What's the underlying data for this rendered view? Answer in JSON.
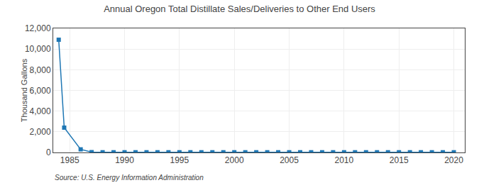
{
  "chart_data": {
    "type": "line",
    "title": "Annual Oregon Total Distillate Sales/Deliveries to Other End Users",
    "ylabel": "Thousand Gallons",
    "annotations": [
      "Source: U.S. Energy Information Administration"
    ],
    "x": [
      1984,
      1984.5,
      1986,
      1987,
      1988,
      1989,
      1990,
      1991,
      1992,
      1993,
      1994,
      1995,
      1996,
      1997,
      1998,
      1999,
      2000,
      2001,
      2002,
      2003,
      2004,
      2005,
      2006,
      2007,
      2008,
      2009,
      2010,
      2011,
      2012,
      2013,
      2014,
      2015,
      2016,
      2017,
      2018,
      2019,
      2020
    ],
    "values": [
      10900,
      2400,
      300,
      30,
      20,
      20,
      20,
      20,
      20,
      20,
      20,
      20,
      20,
      20,
      20,
      20,
      20,
      20,
      20,
      20,
      20,
      20,
      20,
      20,
      20,
      20,
      20,
      20,
      20,
      20,
      20,
      20,
      20,
      20,
      20,
      20,
      20
    ],
    "xlim": [
      1983.5,
      2021
    ],
    "xticks": [
      1985,
      1990,
      1995,
      2000,
      2005,
      2010,
      2015,
      2020
    ],
    "ylim": [
      0,
      12000
    ],
    "yticks": [
      0,
      {
        "value": 2000,
        "label": "2,000"
      },
      {
        "value": 4000,
        "label": "4,000"
      },
      {
        "value": 6000,
        "label": "6,000"
      },
      {
        "value": 8000,
        "label": "8,000"
      },
      {
        "value": 10000,
        "label": "10,000"
      },
      {
        "value": 12000,
        "label": "12,000"
      }
    ],
    "grid": true,
    "marker": "square",
    "line_style": "solid"
  }
}
